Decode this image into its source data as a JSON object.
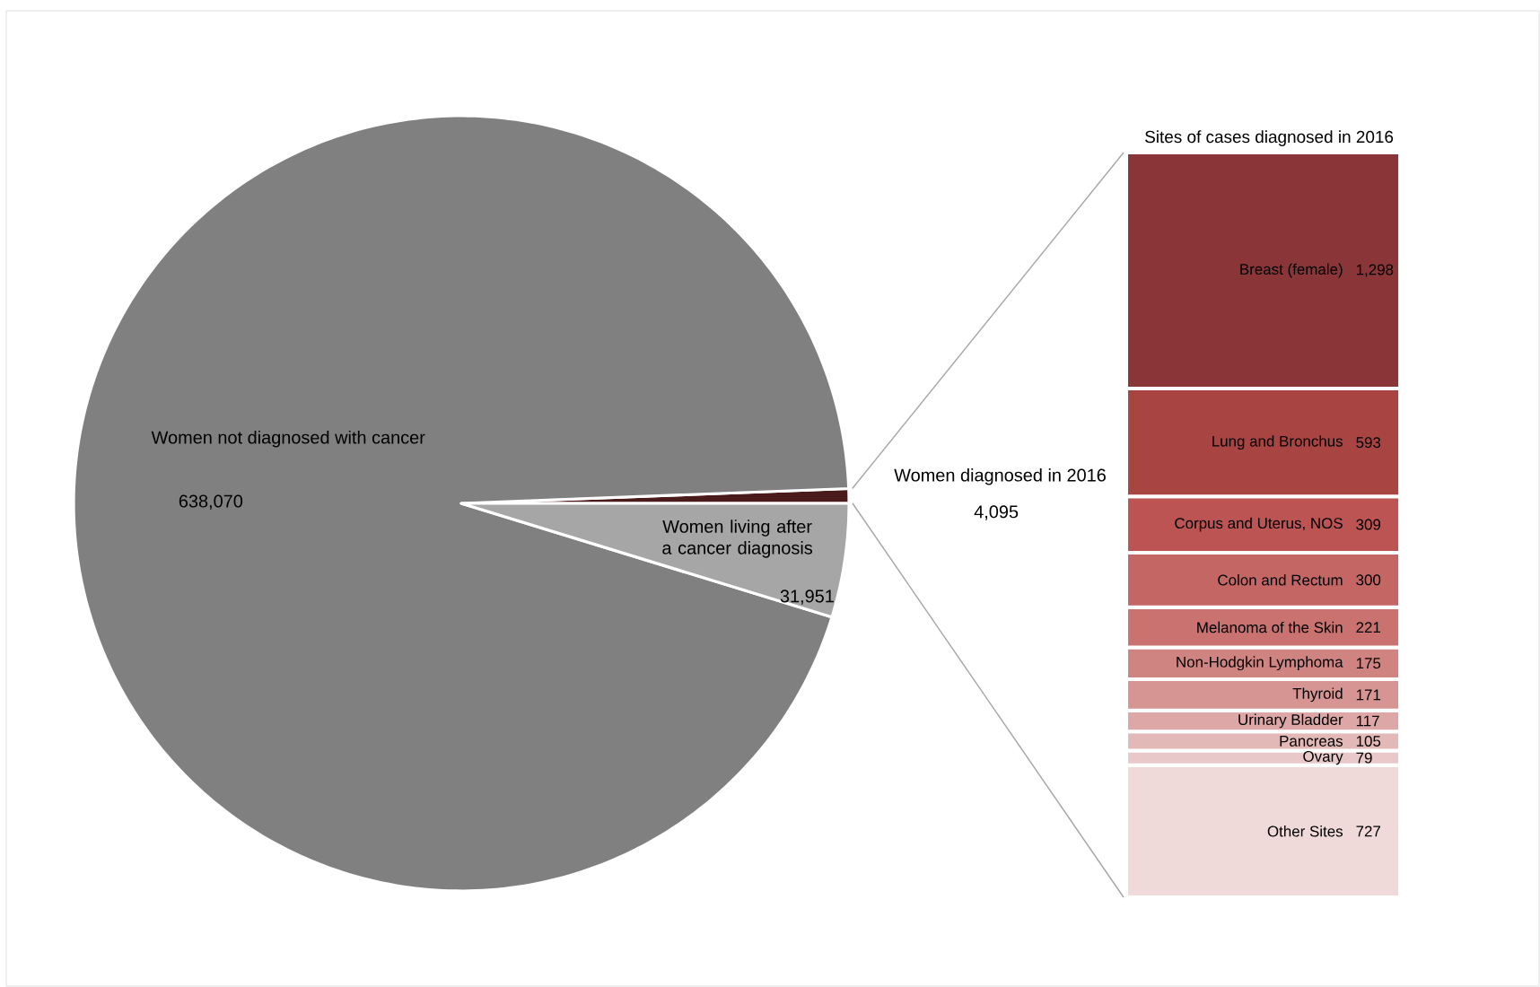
{
  "chart_data": [
    {
      "type": "pie",
      "categories": [
        "Women diagnosed in 2016",
        "Women not diagnosed with cancer",
        "Women living after a cancer diagnosis"
      ],
      "values": [
        4095,
        638070,
        31951
      ],
      "colors": [
        "#4b1b1b",
        "#808080",
        "#a6a6a6"
      ],
      "value_labels": [
        "4,095",
        "638,070",
        "31,951"
      ]
    },
    {
      "type": "bar",
      "title": "Sites of cases diagnosed in 2016",
      "categories": [
        null
      ],
      "stacked": true,
      "series": [
        {
          "name": "Other Sites",
          "color": "#efd9d9",
          "values": [
            727
          ],
          "value_labels": [
            "727"
          ]
        },
        {
          "name": "Ovary",
          "color": "#e8c8c8",
          "values": [
            79
          ],
          "value_labels": [
            "79"
          ]
        },
        {
          "name": "Pancreas",
          "color": "#e3b9b8",
          "values": [
            105
          ],
          "value_labels": [
            "105"
          ]
        },
        {
          "name": "Urinary Bladder",
          "color": "#dca7a6",
          "values": [
            117
          ],
          "value_labels": [
            "117"
          ]
        },
        {
          "name": "Thyroid",
          "color": "#d69593",
          "values": [
            171
          ],
          "value_labels": [
            "171"
          ]
        },
        {
          "name": "Non-Hodgkin Lymphoma",
          "color": "#d08482",
          "values": [
            175
          ],
          "value_labels": [
            "175"
          ]
        },
        {
          "name": "Melanoma of the Skin",
          "color": "#c97270",
          "values": [
            221
          ],
          "value_labels": [
            "221"
          ]
        },
        {
          "name": "Colon and Rectum",
          "color": "#c46664",
          "values": [
            300
          ],
          "value_labels": [
            "300"
          ]
        },
        {
          "name": "Corpus and Uterus, NOS",
          "color": "#bb5452",
          "values": [
            309
          ],
          "value_labels": [
            "309"
          ]
        },
        {
          "name": "Lung and Bronchus",
          "color": "#a84442",
          "values": [
            593
          ],
          "value_labels": [
            "593"
          ]
        },
        {
          "name": "Breast (female)",
          "color": "#8a3638",
          "values": [
            1298
          ],
          "value_labels": [
            "1,298"
          ]
        }
      ]
    }
  ]
}
